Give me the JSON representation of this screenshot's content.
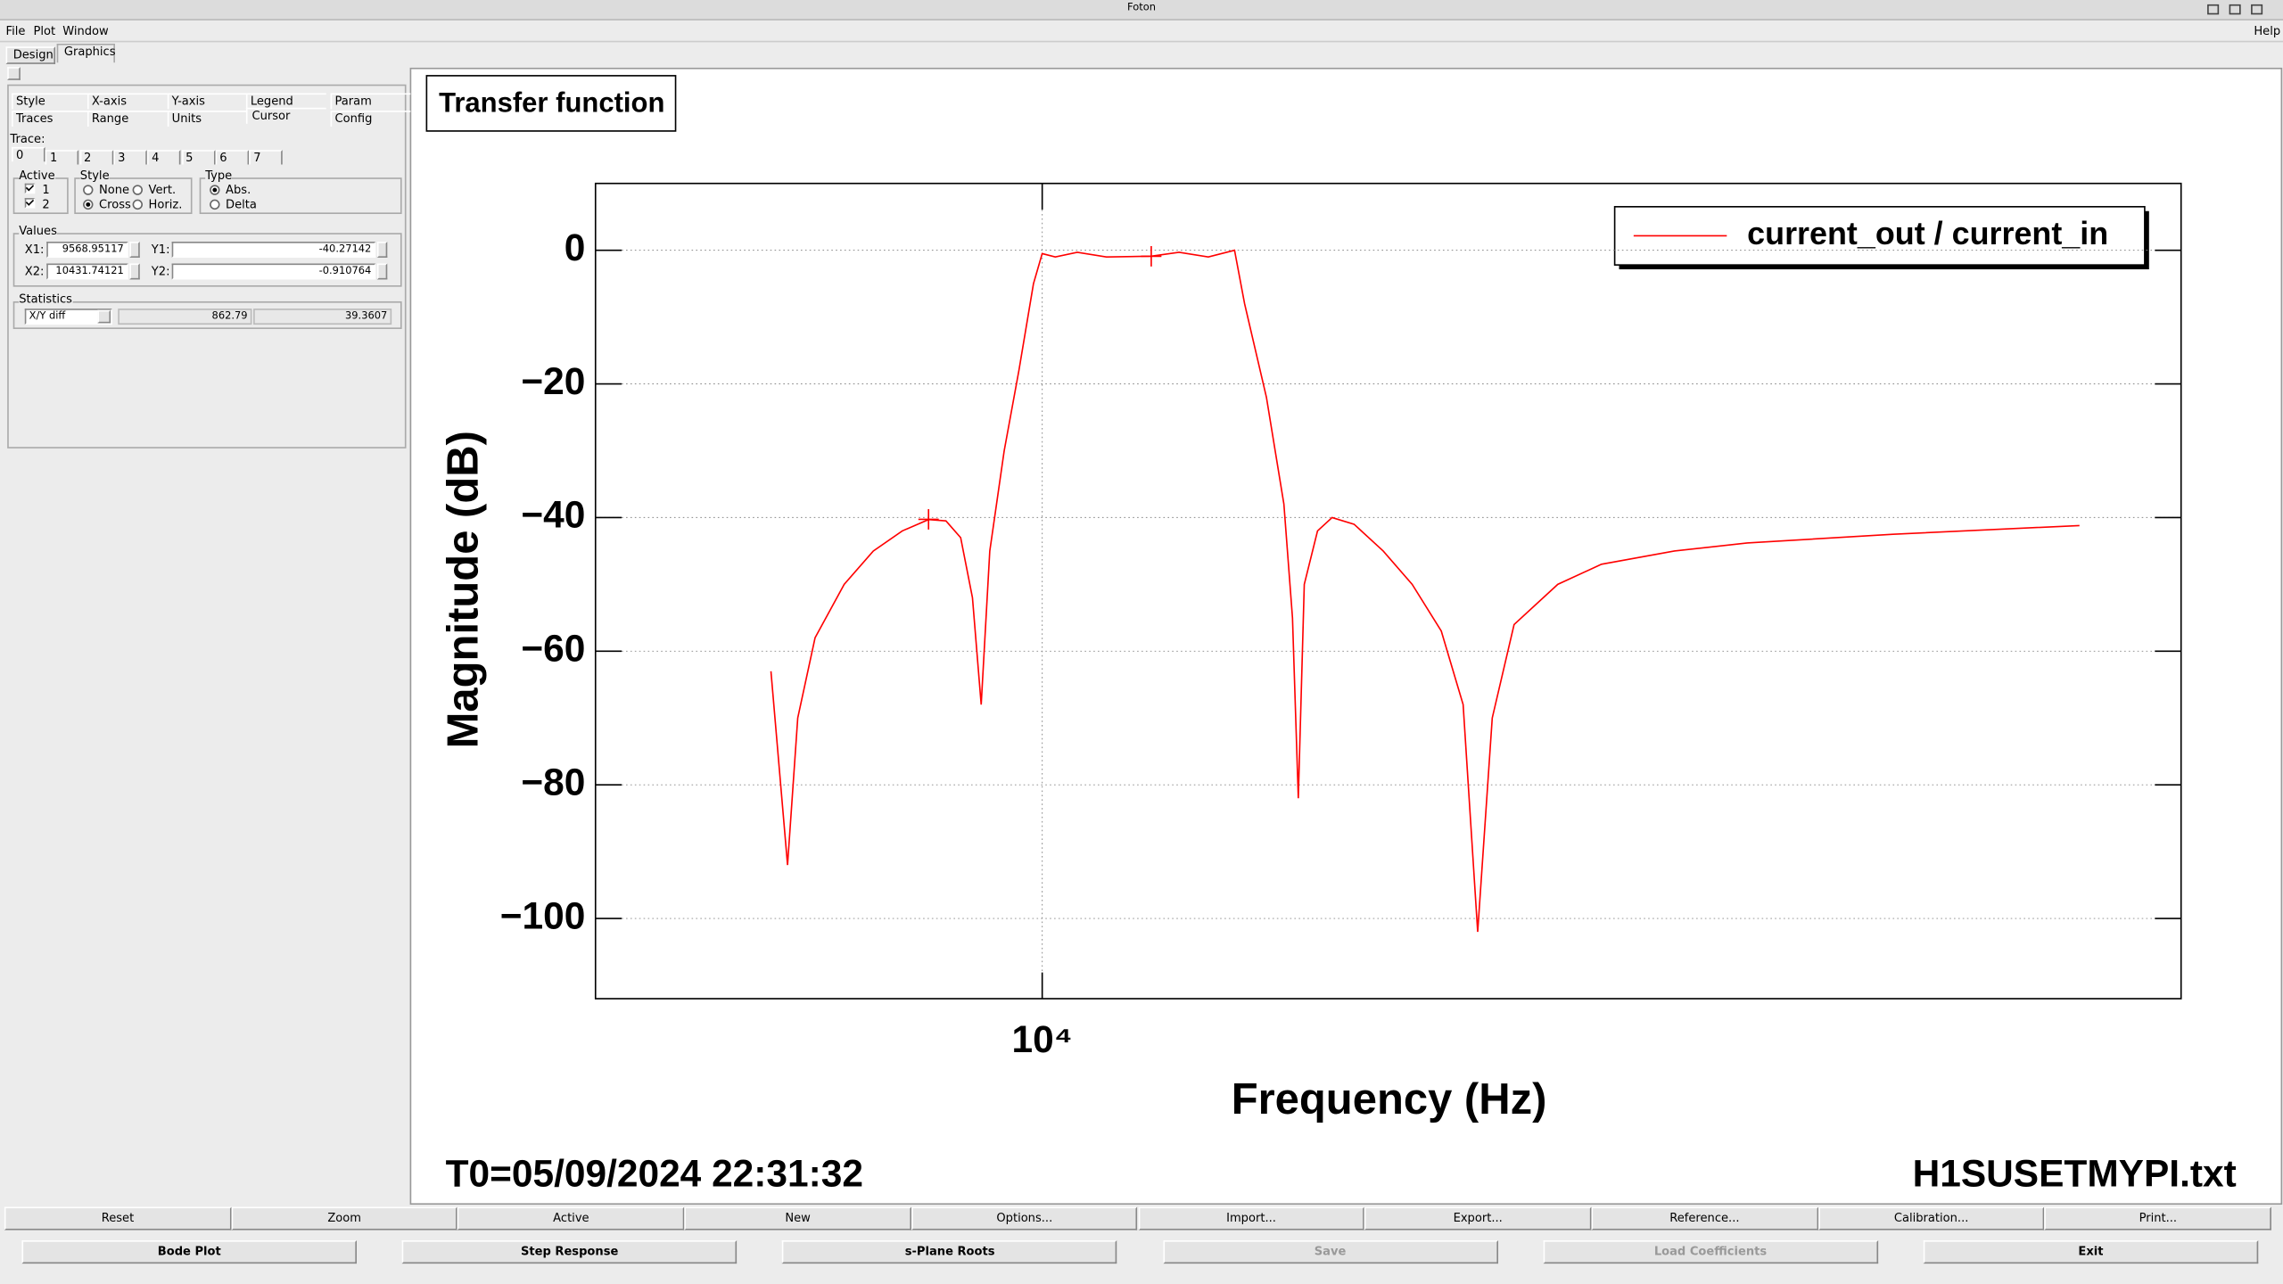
{
  "window": {
    "title": "Foton",
    "menu": [
      "File",
      "Plot",
      "Window"
    ],
    "help": "Help"
  },
  "tabs": [
    "Design",
    "Graphics"
  ],
  "panel": {
    "subtabs_row1": [
      "Style",
      "X-axis",
      "Y-axis",
      "Legend",
      "Param"
    ],
    "subtabs_row2": [
      "Traces",
      "Range",
      "Units",
      "Cursor",
      "Config"
    ],
    "trace_label": "Trace:",
    "trace_tabs": [
      "0",
      "1",
      "2",
      "3",
      "4",
      "5",
      "6",
      "7"
    ],
    "active_label": "Active",
    "active": [
      "1",
      "2"
    ],
    "style_label": "Style",
    "style_options": [
      "None",
      "Vert.",
      "Cross",
      "Horiz."
    ],
    "style_selected": 2,
    "type_label": "Type",
    "type_options": [
      "Abs.",
      "Delta"
    ],
    "type_selected": 0,
    "values_label": "Values",
    "x1_label": "X1:",
    "x1": 9568.95117,
    "y1_label": "Y1:",
    "y1": -40.27142,
    "x2_label": "X2:",
    "x2": 10431.74121,
    "y2_label": "Y2:",
    "y2": -0.910764,
    "statistics_label": "Statistics",
    "stat_mode": "X/Y diff",
    "stat_x": 862.79,
    "stat_y": 39.3607
  },
  "chart_data": {
    "type": "line",
    "title": "Transfer function",
    "xlabel": "Frequency (Hz)",
    "ylabel": "Magnitude (dB)",
    "x": [
      9002,
      9060,
      9096,
      9157,
      9261,
      9366,
      9472,
      9569,
      9634,
      9689,
      9733,
      9766,
      9799,
      9854,
      9910,
      9966,
      10000,
      10051,
      10137,
      10252,
      10432,
      10545,
      10665,
      10774,
      10816,
      10908,
      10982,
      11019,
      11044,
      11069,
      11126,
      11189,
      11285,
      11413,
      11542,
      11673,
      11772,
      11839,
      11906,
      12007,
      12212,
      12421,
      12777,
      13143,
      13907,
      14949
    ],
    "series": [
      {
        "name": "current_out / current_in",
        "color": "#ff0000",
        "values": [
          -63,
          -92,
          -70,
          -58,
          -50,
          -45,
          -42,
          -40.3,
          -40.5,
          -43,
          -52,
          -68,
          -45,
          -30,
          -18,
          -5,
          -0.5,
          -1,
          -0.3,
          -1,
          -0.9,
          -0.3,
          -1,
          0,
          -8,
          -22,
          -38,
          -55,
          -82,
          -50,
          -42,
          -40,
          -41,
          -45,
          -50,
          -57,
          -68,
          -102,
          -70,
          -56,
          -50,
          -47,
          -45,
          -43.8,
          -42.5,
          -41.2
        ]
      }
    ],
    "xscale": "log",
    "xlim": [
      8410,
      15550
    ],
    "xticks": [
      {
        "value": 10000,
        "label": "10⁴"
      }
    ],
    "ylim": [
      -112,
      10
    ],
    "yticks": [
      0,
      {
        "value": -20,
        "label": "−20"
      },
      {
        "value": -40,
        "label": "−40"
      },
      {
        "value": -60,
        "label": "−60"
      },
      {
        "value": -80,
        "label": "−80"
      },
      {
        "value": -100,
        "label": "−100"
      }
    ],
    "grid": true,
    "legend": "top-right"
  },
  "footer": {
    "t0": "T0=05/09/2024 22:31:32",
    "file": "H1SUSETMYPI.txt"
  },
  "toolbar": [
    "Reset",
    "Zoom",
    "Active",
    "New",
    "Options...",
    "Import...",
    "Export...",
    "Reference...",
    "Calibration...",
    "Print..."
  ],
  "bottom_buttons": [
    {
      "label": "Bode Plot",
      "enabled": true
    },
    {
      "label": "Step Response",
      "enabled": true
    },
    {
      "label": "s-Plane Roots",
      "enabled": true
    },
    {
      "label": "Save",
      "enabled": false
    },
    {
      "label": "Load Coefficients",
      "enabled": false
    },
    {
      "label": "Exit",
      "enabled": true
    }
  ]
}
